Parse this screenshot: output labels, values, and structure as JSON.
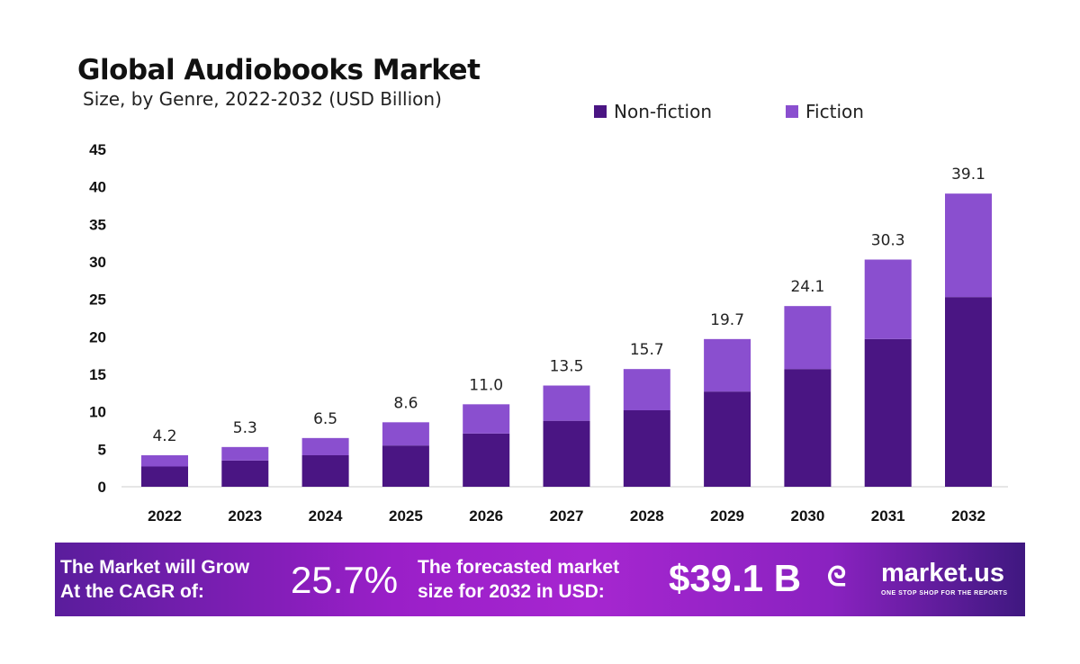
{
  "chart_data": {
    "type": "bar",
    "stacked": true,
    "title": "Global Audiobooks Market",
    "subtitle": "Size, by Genre, 2022-2032 (USD Billion)",
    "categories": [
      "2022",
      "2023",
      "2024",
      "2025",
      "2026",
      "2027",
      "2028",
      "2029",
      "2030",
      "2031",
      "2032"
    ],
    "series": [
      {
        "name": "Non-fiction",
        "color": "#4a1583",
        "values": [
          2.7,
          3.5,
          4.2,
          5.5,
          7.1,
          8.8,
          10.2,
          12.7,
          15.7,
          19.7,
          25.3
        ]
      },
      {
        "name": "Fiction",
        "color": "#8a4fcf",
        "values": [
          1.5,
          1.8,
          2.3,
          3.1,
          3.9,
          4.7,
          5.5,
          7.0,
          8.4,
          10.6,
          13.8
        ]
      }
    ],
    "totals": [
      "4.2",
      "5.3",
      "6.5",
      "8.6",
      "11.0",
      "13.5",
      "15.7",
      "19.7",
      "24.1",
      "30.3",
      "39.1"
    ],
    "ylim": [
      0,
      45
    ],
    "yticks": [
      "0",
      "5",
      "10",
      "15",
      "20",
      "25",
      "30",
      "35",
      "40",
      "45"
    ],
    "grid": false,
    "legend_placement": "top-right"
  },
  "banner": {
    "cagr_label_1": "The Market will Grow",
    "cagr_label_2": "At the CAGR of:",
    "cagr_value": "25.7%",
    "forecast_label_1": "The forecasted market",
    "forecast_label_2": "size for 2032 in USD:",
    "forecast_value": "$39.1 B",
    "brand": "market.us",
    "tagline": "ONE STOP SHOP FOR THE REPORTS"
  }
}
